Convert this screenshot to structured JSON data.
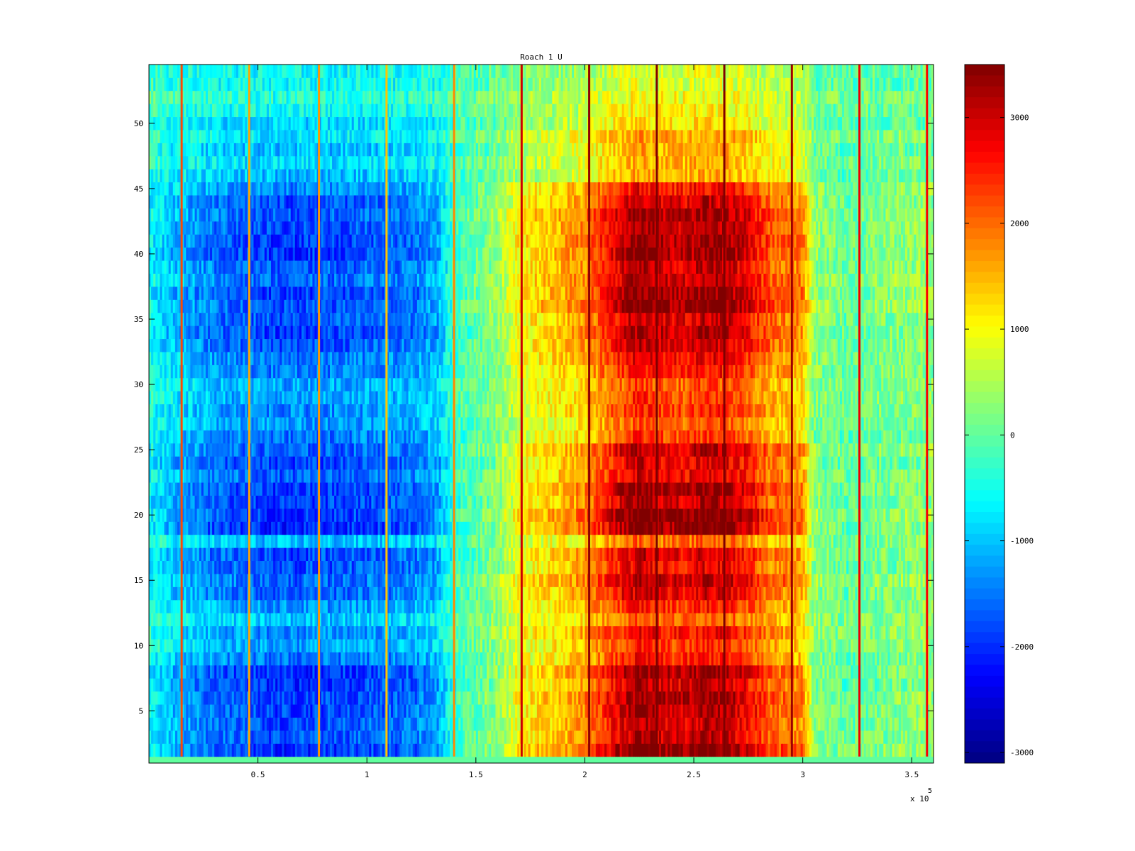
{
  "chart_data": {
    "type": "heatmap",
    "title": "Roach 1 U",
    "colormap": "jet",
    "xlim": [
      0,
      360000
    ],
    "ylim": [
      1,
      54.5
    ],
    "x_ticks": [
      50000,
      100000,
      150000,
      200000,
      250000,
      300000,
      350000
    ],
    "x_tick_labels": [
      "0.5",
      "1",
      "1.5",
      "2",
      "2.5",
      "3",
      "3.5"
    ],
    "x_multiplier": "x 10",
    "x_multiplier_exponent": "5",
    "y_ticks": [
      5,
      10,
      15,
      20,
      25,
      30,
      35,
      40,
      45,
      50
    ],
    "y_tick_labels": [
      "5",
      "10",
      "15",
      "20",
      "25",
      "30",
      "35",
      "40",
      "45",
      "50"
    ],
    "rows": 54,
    "bottom_row_value": 0,
    "row_scale": [
      0.5,
      1.15,
      1.0,
      1.0,
      1.05,
      1.08,
      1.05,
      1.1,
      0.85,
      0.75,
      0.85,
      0.65,
      0.8,
      0.95,
      1.0,
      0.95,
      1.0,
      0.65,
      1.15,
      1.15,
      1.05,
      1.1,
      0.95,
      1.0,
      1.0,
      0.8,
      0.7,
      0.8,
      0.75,
      0.7,
      0.85,
      0.9,
      1.0,
      1.05,
      1.0,
      1.1,
      1.1,
      1.0,
      1.0,
      1.1,
      1.1,
      1.05,
      1.05,
      1.0,
      0.85,
      0.55,
      0.5,
      0.55,
      0.5,
      0.45,
      0.35,
      0.3,
      0.3,
      0.3
    ],
    "column_profile": {
      "x": [
        0,
        10000,
        30000,
        60000,
        90000,
        120000,
        132000,
        140000,
        150000,
        160000,
        170000,
        185000,
        200000,
        215000,
        225000,
        235000,
        245000,
        255000,
        265000,
        275000,
        285000,
        300000,
        305000,
        320000,
        340000,
        360000
      ],
      "value": [
        -600,
        -1000,
        -1500,
        -1800,
        -1700,
        -1500,
        -1200,
        -300,
        0,
        300,
        1000,
        1300,
        1700,
        2700,
        3200,
        2900,
        2800,
        3100,
        3000,
        2600,
        2000,
        1700,
        300,
        0,
        200,
        300
      ]
    },
    "spike_lines": [
      {
        "x": 15000,
        "value": 2200
      },
      {
        "x": 46000,
        "value": 1600
      },
      {
        "x": 78000,
        "value": 1700
      },
      {
        "x": 109000,
        "value": 1400
      },
      {
        "x": 140000,
        "value": 1800
      },
      {
        "x": 171000,
        "value": 3000
      },
      {
        "x": 202000,
        "value": 3400
      },
      {
        "x": 233000,
        "value": 3500
      },
      {
        "x": 264000,
        "value": 3500
      },
      {
        "x": 295000,
        "value": 3300
      },
      {
        "x": 326000,
        "value": 2800
      },
      {
        "x": 357000,
        "value": 2700
      }
    ],
    "colorbar": {
      "range": [
        -3100,
        3500
      ],
      "ticks": [
        3000,
        2000,
        1000,
        0,
        -1000,
        -2000,
        -3000
      ],
      "tick_labels": [
        "3000",
        "2000",
        "1000",
        "0",
        "-1000",
        "-2000",
        "-3000"
      ]
    }
  }
}
